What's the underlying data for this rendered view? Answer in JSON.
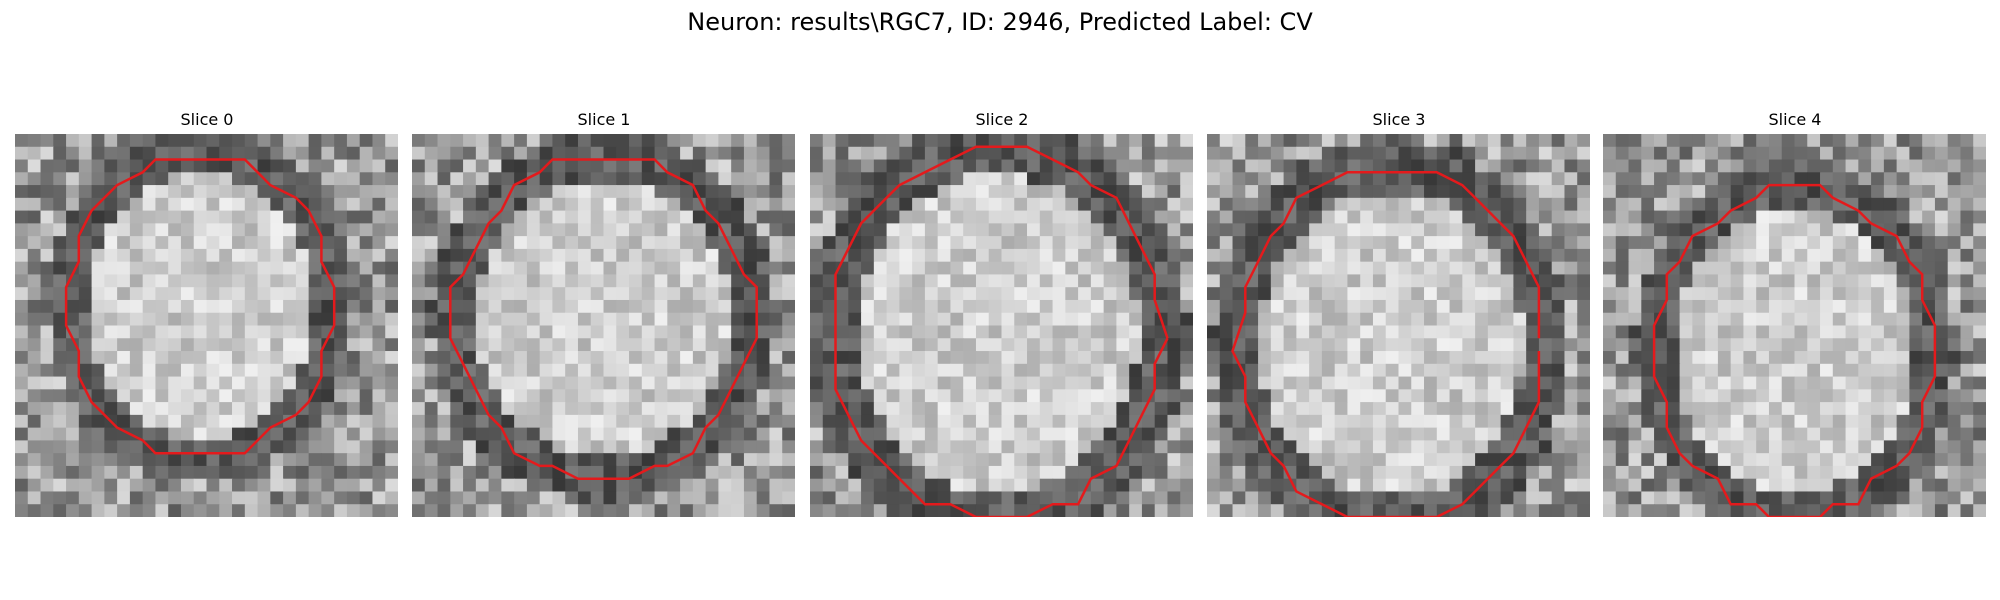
{
  "figure": {
    "title": "Neuron: results\\RGC7, ID: 2946, Predicted Label: CV"
  },
  "panels": [
    {
      "title": "Slice 0"
    },
    {
      "title": "Slice 1"
    },
    {
      "title": "Slice 2"
    },
    {
      "title": "Slice 3"
    },
    {
      "title": "Slice 4"
    }
  ],
  "colors": {
    "contour": "#e41a1c"
  }
}
